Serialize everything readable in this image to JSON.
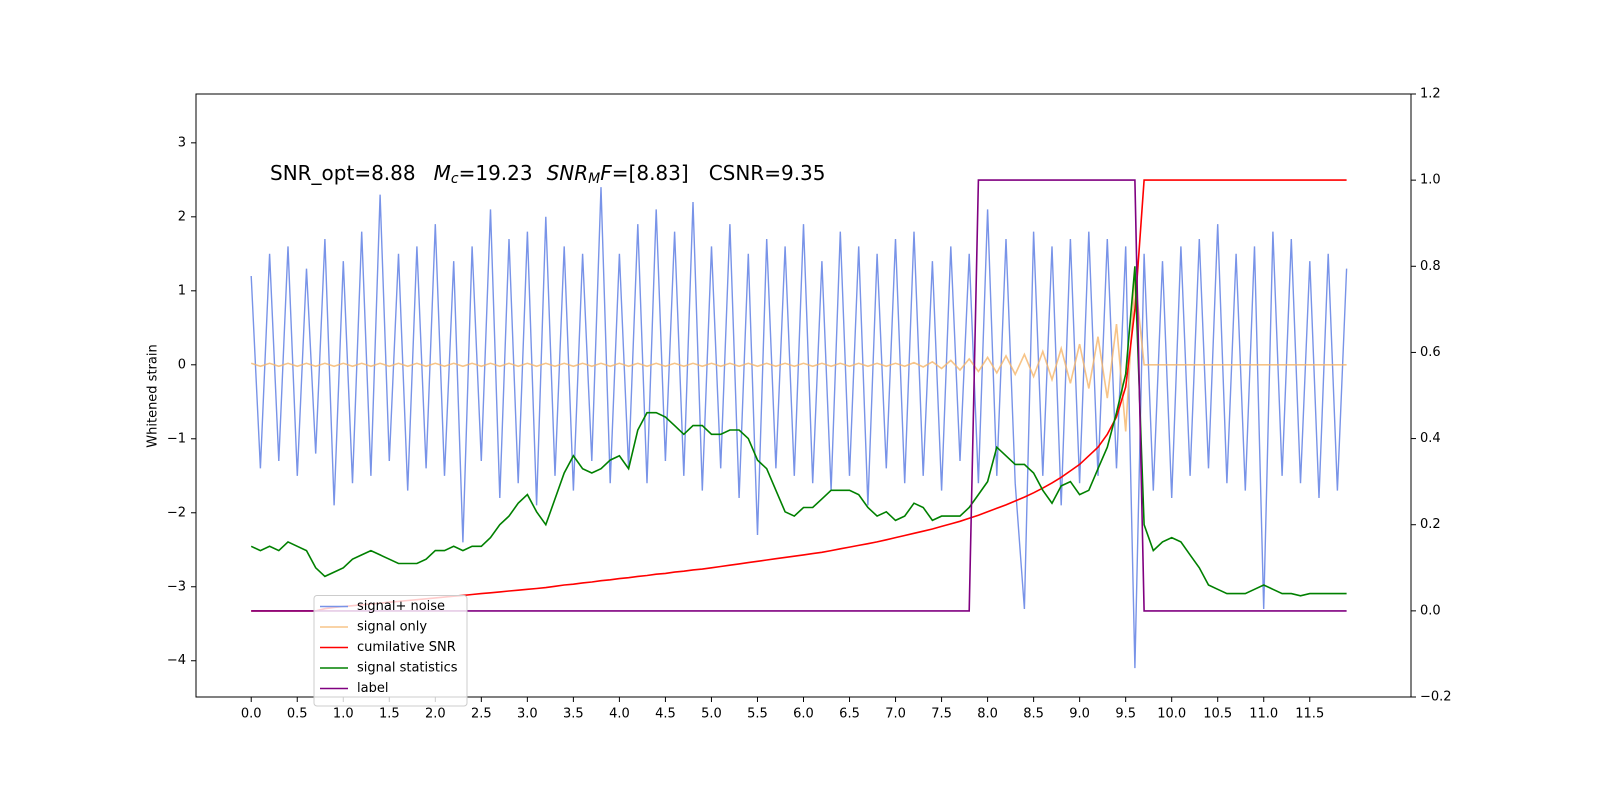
{
  "chart_data": {
    "type": "line",
    "annotation_parts": [
      "SNR_opt=8.88",
      "M",
      "c",
      "=19.23",
      "SNR",
      "M",
      "F",
      "=[8.83]",
      "CSNR=9.35"
    ],
    "ylabel": "Whitened strain",
    "xlim": [
      -0.6,
      12.6
    ],
    "ylim": [
      -4.49,
      3.66
    ],
    "y2lim": [
      -0.2,
      1.2
    ],
    "xticks": [
      {
        "value": 0,
        "label": "0.0"
      },
      {
        "value": 0.5,
        "label": "0.5"
      },
      {
        "value": 1,
        "label": "1.0"
      },
      {
        "value": 1.5,
        "label": "1.5"
      },
      {
        "value": 2,
        "label": "2.0"
      },
      {
        "value": 2.5,
        "label": "2.5"
      },
      {
        "value": 3,
        "label": "3.0"
      },
      {
        "value": 3.5,
        "label": "3.5"
      },
      {
        "value": 4,
        "label": "4.0"
      },
      {
        "value": 4.5,
        "label": "4.5"
      },
      {
        "value": 5,
        "label": "5.0"
      },
      {
        "value": 5.5,
        "label": "5.5"
      },
      {
        "value": 6,
        "label": "6.0"
      },
      {
        "value": 6.5,
        "label": "6.5"
      },
      {
        "value": 7,
        "label": "7.0"
      },
      {
        "value": 7.5,
        "label": "7.5"
      },
      {
        "value": 8,
        "label": "8.0"
      },
      {
        "value": 8.5,
        "label": "8.5"
      },
      {
        "value": 9,
        "label": "9.0"
      },
      {
        "value": 9.5,
        "label": "9.5"
      },
      {
        "value": 10,
        "label": "10.0"
      },
      {
        "value": 10.5,
        "label": "10.5"
      },
      {
        "value": 11,
        "label": "11.0"
      },
      {
        "value": 11.5,
        "label": "11.5"
      }
    ],
    "yticks": [
      {
        "value": -4,
        "label": "−4"
      },
      {
        "value": -3,
        "label": "−3"
      },
      {
        "value": -2,
        "label": "−2"
      },
      {
        "value": -1,
        "label": "−1"
      },
      0,
      1,
      2,
      3
    ],
    "y2ticks": [
      {
        "value": -0.2,
        "label": "−0.2"
      },
      {
        "value": 0,
        "label": "0.0"
      },
      {
        "value": 0.2,
        "label": "0.2"
      },
      {
        "value": 0.4,
        "label": "0.4"
      },
      {
        "value": 0.6,
        "label": "0.6"
      },
      {
        "value": 0.8,
        "label": "0.8"
      },
      {
        "value": 1,
        "label": "1.0"
      },
      {
        "value": 1.2,
        "label": "1.2"
      }
    ],
    "legend": "lower left",
    "x": [
      0,
      0.1,
      0.2,
      0.3,
      0.4,
      0.5,
      0.6,
      0.7,
      0.8,
      0.9,
      1,
      1.1,
      1.2,
      1.3,
      1.4,
      1.5,
      1.6,
      1.7,
      1.8,
      1.9,
      2,
      2.1,
      2.2,
      2.3,
      2.4,
      2.5,
      2.6,
      2.7,
      2.8,
      2.9,
      3,
      3.1,
      3.2,
      3.3,
      3.4,
      3.5,
      3.6,
      3.7,
      3.8,
      3.9,
      4,
      4.1,
      4.2,
      4.3,
      4.4,
      4.5,
      4.6,
      4.7,
      4.8,
      4.9,
      5,
      5.1,
      5.2,
      5.3,
      5.4,
      5.5,
      5.6,
      5.7,
      5.8,
      5.9,
      6,
      6.1,
      6.2,
      6.3,
      6.4,
      6.5,
      6.6,
      6.7,
      6.8,
      6.9,
      7,
      7.1,
      7.2,
      7.3,
      7.4,
      7.5,
      7.6,
      7.7,
      7.8,
      7.9,
      8,
      8.1,
      8.2,
      8.3,
      8.4,
      8.5,
      8.6,
      8.7,
      8.8,
      8.9,
      9,
      9.1,
      9.2,
      9.3,
      9.4,
      9.5,
      9.6,
      9.7,
      9.8,
      9.9,
      10,
      10.1,
      10.2,
      10.3,
      10.4,
      10.5,
      10.6,
      10.7,
      10.8,
      10.9,
      11,
      11.1,
      11.2,
      11.3,
      11.4,
      11.5,
      11.6,
      11.7,
      11.8,
      11.9
    ],
    "series": [
      {
        "name": "signal+ noise",
        "color": "#7893e8",
        "values": [
          1.2,
          -1.4,
          1.5,
          -1.3,
          1.6,
          -1.5,
          1.3,
          -1.2,
          1.7,
          -1.9,
          1.4,
          -1.6,
          1.8,
          -1.5,
          2.3,
          -1.3,
          1.5,
          -1.7,
          1.6,
          -1.4,
          1.9,
          -1.5,
          1.4,
          -2.4,
          1.6,
          -1.3,
          2.1,
          -1.8,
          1.7,
          -1.6,
          1.8,
          -1.9,
          2.0,
          -1.5,
          1.6,
          -1.7,
          1.5,
          -1.3,
          2.4,
          -1.6,
          1.5,
          -1.4,
          1.9,
          -1.6,
          2.1,
          -1.3,
          1.8,
          -1.5,
          2.2,
          -1.7,
          1.6,
          -1.4,
          1.9,
          -1.8,
          1.5,
          -2.3,
          1.7,
          -1.4,
          1.6,
          -1.5,
          1.9,
          -1.6,
          1.4,
          -1.7,
          1.8,
          -1.5,
          1.6,
          -1.9,
          1.5,
          -1.4,
          1.7,
          -1.6,
          1.8,
          -1.5,
          1.4,
          -1.7,
          1.6,
          -1.3,
          1.5,
          -1.6,
          2.1,
          -1.5,
          1.7,
          -1.6,
          -3.3,
          1.8,
          -1.5,
          1.6,
          -1.9,
          1.7,
          -1.6,
          1.8,
          -1.5,
          1.7,
          -1.4,
          1.6,
          -4.1,
          1.5,
          -1.7,
          1.4,
          -1.8,
          1.6,
          -1.5,
          1.7,
          -1.4,
          1.9,
          -1.6,
          1.5,
          -1.7,
          1.6,
          -3.3,
          1.8,
          -1.5,
          1.7,
          -1.6,
          1.4,
          -1.8,
          1.5,
          -1.7,
          1.3
        ]
      },
      {
        "name": "signal only",
        "color": "#f5b56a",
        "values": [
          0.02,
          -0.02,
          0.02,
          -0.02,
          0.02,
          -0.02,
          0.02,
          -0.02,
          0.02,
          -0.02,
          0.02,
          -0.02,
          0.02,
          -0.02,
          0.02,
          -0.02,
          0.02,
          -0.02,
          0.02,
          -0.02,
          0.02,
          -0.02,
          0.02,
          -0.02,
          0.02,
          -0.02,
          0.02,
          -0.02,
          0.02,
          -0.02,
          0.02,
          -0.02,
          0.02,
          -0.02,
          0.02,
          -0.02,
          0.02,
          -0.02,
          0.02,
          -0.02,
          0.02,
          -0.02,
          0.02,
          -0.02,
          0.02,
          -0.02,
          0.02,
          -0.02,
          0.02,
          -0.02,
          0.02,
          -0.02,
          0.02,
          -0.02,
          0.02,
          -0.02,
          0.02,
          -0.02,
          0.02,
          -0.02,
          0.02,
          -0.02,
          0.02,
          -0.02,
          0.02,
          -0.02,
          0.02,
          -0.02,
          0.02,
          -0.02,
          0.02,
          -0.02,
          0.03,
          -0.03,
          0.04,
          -0.05,
          0.06,
          -0.07,
          0.08,
          -0.09,
          0.1,
          -0.11,
          0.12,
          -0.13,
          0.14,
          -0.16,
          0.18,
          -0.2,
          0.22,
          -0.25,
          0.28,
          -0.32,
          0.38,
          -0.45,
          0.55,
          -0.9,
          1.2,
          0,
          0,
          0,
          0,
          0,
          0,
          0,
          0,
          0,
          0,
          0,
          0,
          0,
          0,
          0,
          0,
          0,
          0,
          0,
          0,
          0,
          0,
          0
        ]
      },
      {
        "name": "cumilative SNR",
        "color": "#ff0000",
        "axis": "y2",
        "values": [
          0,
          0,
          0,
          0,
          0,
          0,
          0,
          0,
          0.005,
          0.008,
          0.01,
          0.012,
          0.014,
          0.016,
          0.018,
          0.02,
          0.022,
          0.024,
          0.026,
          0.028,
          0.03,
          0.032,
          0.034,
          0.036,
          0.038,
          0.04,
          0.042,
          0.044,
          0.046,
          0.048,
          0.05,
          0.052,
          0.054,
          0.057,
          0.06,
          0.062,
          0.065,
          0.067,
          0.07,
          0.072,
          0.075,
          0.077,
          0.08,
          0.082,
          0.085,
          0.087,
          0.09,
          0.092,
          0.095,
          0.097,
          0.1,
          0.103,
          0.106,
          0.109,
          0.112,
          0.115,
          0.118,
          0.121,
          0.124,
          0.127,
          0.13,
          0.133,
          0.136,
          0.14,
          0.144,
          0.148,
          0.152,
          0.156,
          0.16,
          0.165,
          0.17,
          0.175,
          0.18,
          0.185,
          0.19,
          0.196,
          0.202,
          0.208,
          0.215,
          0.222,
          0.23,
          0.238,
          0.246,
          0.255,
          0.264,
          0.274,
          0.285,
          0.297,
          0.31,
          0.325,
          0.34,
          0.36,
          0.38,
          0.41,
          0.45,
          0.52,
          0.7,
          1,
          1,
          1,
          1,
          1,
          1,
          1,
          1,
          1,
          1,
          1,
          1,
          1,
          1,
          1,
          1,
          1,
          1,
          1,
          1,
          1,
          1,
          1
        ]
      },
      {
        "name": "signal statistics",
        "color": "#008000",
        "axis": "y2",
        "values": [
          0.15,
          0.14,
          0.15,
          0.14,
          0.16,
          0.15,
          0.14,
          0.1,
          0.08,
          0.09,
          0.1,
          0.12,
          0.13,
          0.14,
          0.13,
          0.12,
          0.11,
          0.11,
          0.11,
          0.12,
          0.14,
          0.14,
          0.15,
          0.14,
          0.15,
          0.15,
          0.17,
          0.2,
          0.22,
          0.25,
          0.27,
          0.23,
          0.2,
          0.26,
          0.32,
          0.36,
          0.33,
          0.32,
          0.33,
          0.35,
          0.36,
          0.33,
          0.42,
          0.46,
          0.46,
          0.45,
          0.43,
          0.41,
          0.43,
          0.43,
          0.41,
          0.41,
          0.42,
          0.42,
          0.4,
          0.35,
          0.33,
          0.28,
          0.23,
          0.22,
          0.24,
          0.24,
          0.26,
          0.28,
          0.28,
          0.28,
          0.27,
          0.24,
          0.22,
          0.23,
          0.21,
          0.22,
          0.25,
          0.24,
          0.21,
          0.22,
          0.22,
          0.22,
          0.24,
          0.27,
          0.3,
          0.38,
          0.36,
          0.34,
          0.34,
          0.32,
          0.28,
          0.25,
          0.29,
          0.3,
          0.27,
          0.28,
          0.33,
          0.38,
          0.46,
          0.55,
          0.8,
          0.2,
          0.14,
          0.16,
          0.17,
          0.16,
          0.13,
          0.1,
          0.06,
          0.05,
          0.04,
          0.04,
          0.04,
          0.05,
          0.06,
          0.05,
          0.04,
          0.04,
          0.035,
          0.04,
          0.04,
          0.04,
          0.04,
          0.04
        ]
      },
      {
        "name": "label",
        "color": "#800080",
        "axis": "y2",
        "values": [
          0,
          0,
          0,
          0,
          0,
          0,
          0,
          0,
          0,
          0,
          0,
          0,
          0,
          0,
          0,
          0,
          0,
          0,
          0,
          0,
          0,
          0,
          0,
          0,
          0,
          0,
          0,
          0,
          0,
          0,
          0,
          0,
          0,
          0,
          0,
          0,
          0,
          0,
          0,
          0,
          0,
          0,
          0,
          0,
          0,
          0,
          0,
          0,
          0,
          0,
          0,
          0,
          0,
          0,
          0,
          0,
          0,
          0,
          0,
          0,
          0,
          0,
          0,
          0,
          0,
          0,
          0,
          0,
          0,
          0,
          0,
          0,
          0,
          0,
          0,
          0,
          0,
          0,
          0,
          1,
          1,
          1,
          1,
          1,
          1,
          1,
          1,
          1,
          1,
          1,
          1,
          1,
          1,
          1,
          1,
          1,
          1,
          0,
          0,
          0,
          0,
          0,
          0,
          0,
          0,
          0,
          0,
          0,
          0,
          0,
          0,
          0,
          0,
          0,
          0,
          0,
          0,
          0,
          0,
          0
        ]
      }
    ]
  }
}
